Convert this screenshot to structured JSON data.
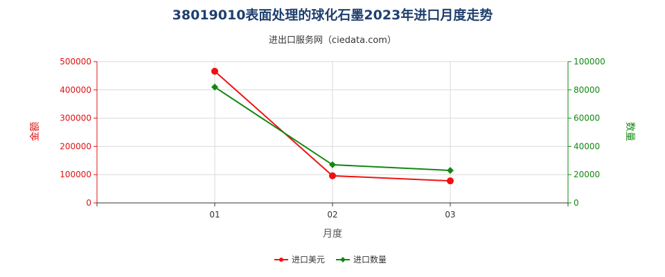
{
  "chart_data": {
    "type": "line",
    "title": "38019010表面处理的球化石墨2023年进口月度走势",
    "subtitle": "进出口服务网（ciedata.com）",
    "xlabel": "月度",
    "categories": [
      "01",
      "02",
      "03"
    ],
    "y_left": {
      "label": "金额",
      "range": [
        0,
        500000
      ],
      "ticks": [
        "0",
        "100000",
        "200000",
        "300000",
        "400000",
        "500000"
      ]
    },
    "y_right": {
      "label": "数量",
      "range": [
        0,
        100000
      ],
      "ticks": [
        "0",
        "20000",
        "40000",
        "60000",
        "80000",
        "100000"
      ]
    },
    "series": [
      {
        "name": "进口美元",
        "axis": "left",
        "color": "#ee1111",
        "marker": "circle",
        "values": [
          466000,
          96000,
          78000
        ]
      },
      {
        "name": "进口数量",
        "axis": "right",
        "color": "#118811",
        "marker": "diamond",
        "values": [
          82000,
          27000,
          23000
        ]
      }
    ],
    "grid": true,
    "legend": "bottom-center",
    "colors": {
      "left_axis": "#dd1111",
      "right_axis": "#118811",
      "title": "#1f3f6e",
      "grid": "#d9d9d9"
    }
  }
}
